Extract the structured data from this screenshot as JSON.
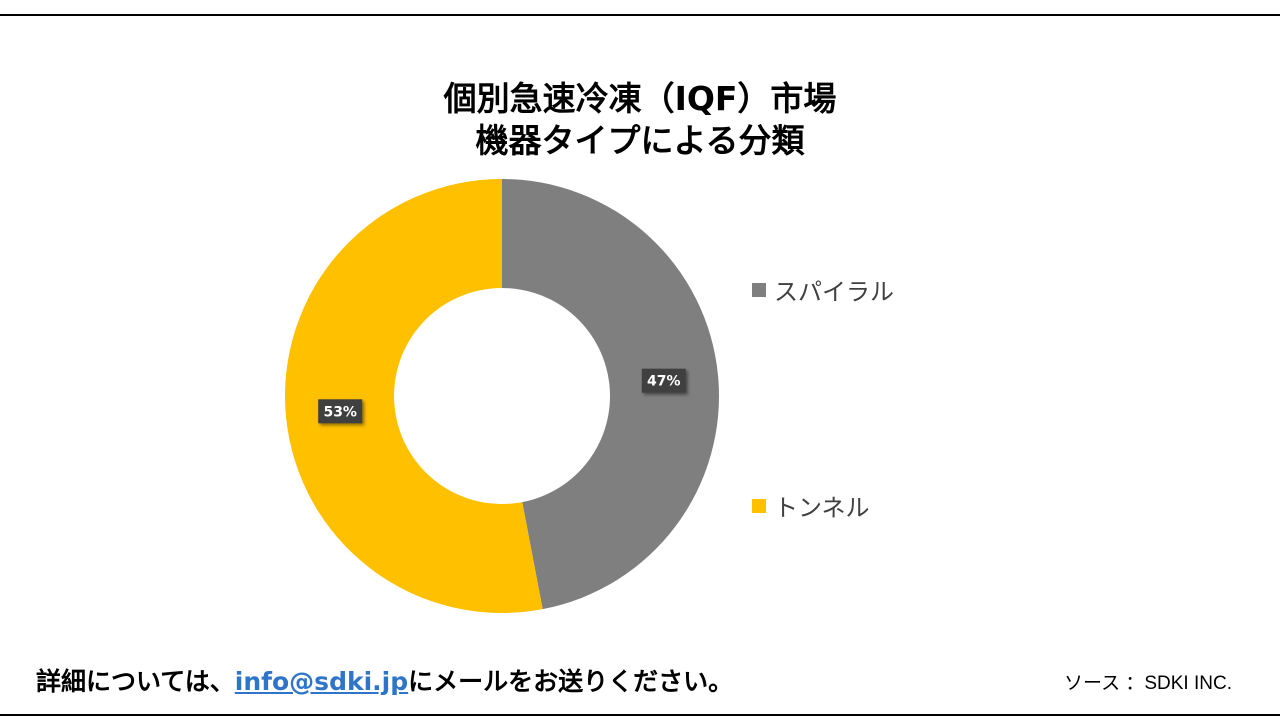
{
  "chart_data": {
    "type": "pie",
    "variant": "donut",
    "title_lines": [
      "個別急速冷凍（IQF）市場",
      "機器タイプによる分類"
    ],
    "slices": [
      {
        "name": "スパイラル",
        "value": 47,
        "label": "47%",
        "color": "#7f7f7f"
      },
      {
        "name": "トンネル",
        "value": 53,
        "label": "53%",
        "color": "#ffc000"
      }
    ],
    "legend_position": "right"
  },
  "footer": {
    "prefix": "詳細については、",
    "email": "info@sdki.jp",
    "suffix": "にメールをお送りください。",
    "source": "ソース ：SDKI INC."
  }
}
